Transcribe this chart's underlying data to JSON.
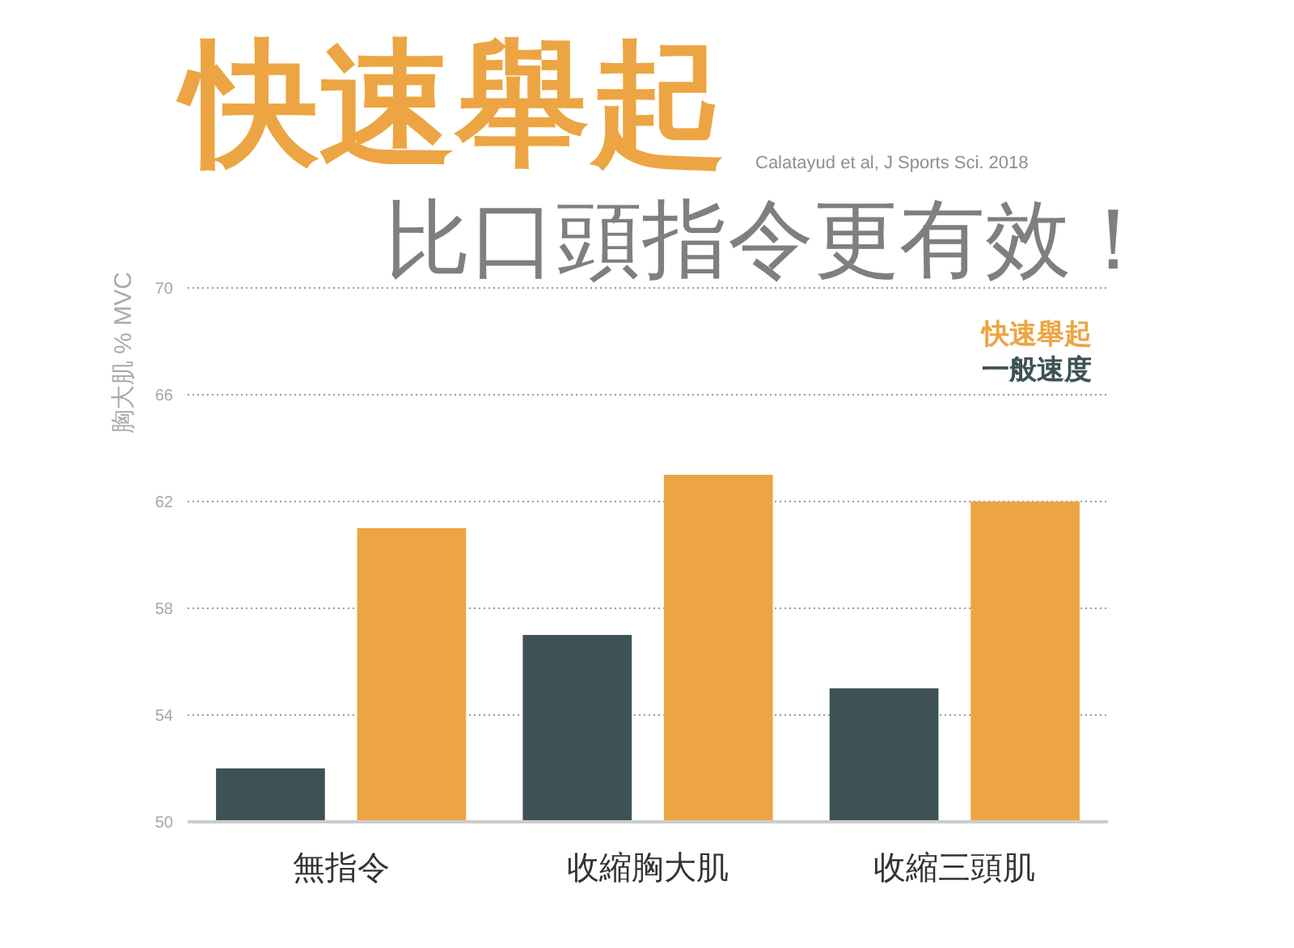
{
  "chart_data": {
    "type": "bar",
    "title": "快速舉起",
    "subtitle": "比口頭指令更有效！",
    "ylabel": "胸大肌 % MVC",
    "annotations": [
      "Calatayud et al, J Sports Sci. 2018"
    ],
    "categories": [
      "無指令",
      "收縮胸大肌",
      "收縮三頭肌"
    ],
    "series": [
      {
        "name": "一般速度",
        "color": "#3e5254",
        "values": [
          52,
          57,
          55
        ]
      },
      {
        "name": "快速舉起",
        "color": "#eca542",
        "values": [
          61,
          63,
          62
        ]
      }
    ],
    "ylim": [
      50,
      70
    ],
    "yticks": [
      50,
      54,
      58,
      62,
      66,
      70
    ],
    "grid": "y",
    "legend": "top right"
  }
}
